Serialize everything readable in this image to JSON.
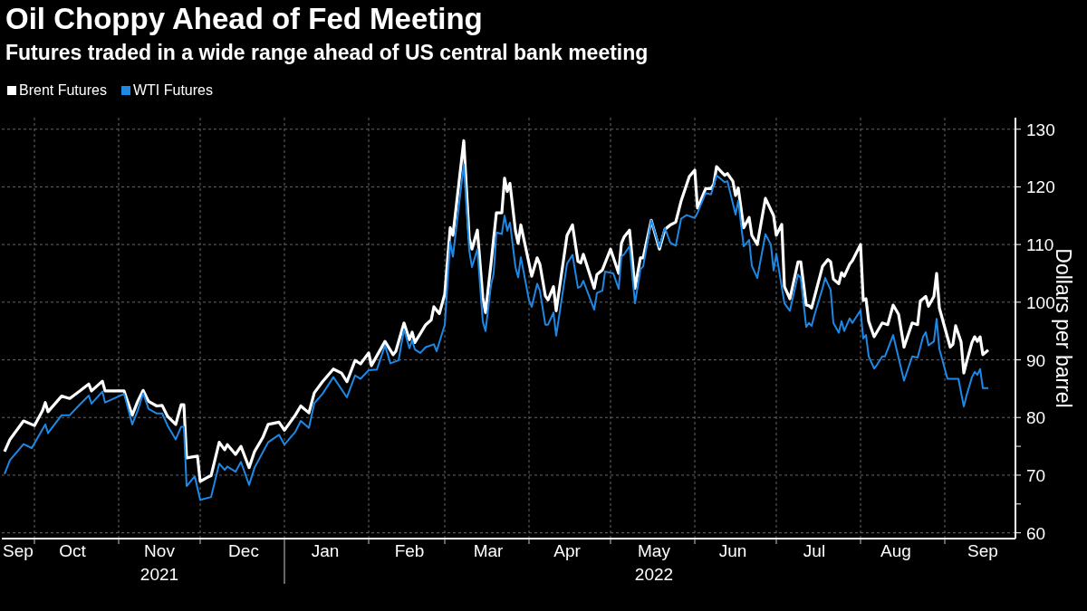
{
  "chart_data": {
    "type": "line",
    "title": "Oil Choppy Ahead of Fed Meeting",
    "subtitle": "Futures traded in a wide range ahead of US central bank meeting",
    "ylabel": "Dollars per barrel",
    "legend": "top left",
    "grid": true,
    "xlim": [
      "2021-09-19",
      "2022-09-27"
    ],
    "xticks": [
      {
        "value": "2021-09-25",
        "label": "Sep"
      },
      {
        "value": "2021-10-01",
        "label": null
      },
      {
        "value": "2021-10-15",
        "label": "Oct"
      },
      {
        "value": "2021-11-01",
        "label": null
      },
      {
        "value": "2021-11-16",
        "label": "Nov\n2021"
      },
      {
        "value": "2021-12-01",
        "label": null
      },
      {
        "value": "2021-12-17",
        "label": "Dec"
      },
      {
        "value": "2022-01-01",
        "label": null
      },
      {
        "value": "2022-01-16",
        "label": "Jan"
      },
      {
        "value": "2022-02-01",
        "label": null
      },
      {
        "value": "2022-02-16",
        "label": "Feb"
      },
      {
        "value": "2022-03-01",
        "label": null
      },
      {
        "value": "2022-03-17",
        "label": "Mar"
      },
      {
        "value": "2022-04-01",
        "label": null
      },
      {
        "value": "2022-04-15",
        "label": "Apr"
      },
      {
        "value": "2022-05-01",
        "label": null
      },
      {
        "value": "2022-05-17",
        "label": "May\n2022"
      },
      {
        "value": "2022-06-01",
        "label": null
      },
      {
        "value": "2022-06-15",
        "label": "Jun"
      },
      {
        "value": "2022-07-01",
        "label": null
      },
      {
        "value": "2022-07-15",
        "label": "Jul"
      },
      {
        "value": "2022-08-01",
        "label": null
      },
      {
        "value": "2022-08-14",
        "label": "Aug"
      },
      {
        "value": "2022-09-01",
        "label": null
      },
      {
        "value": "2022-09-15",
        "label": "Sep"
      }
    ],
    "ylim": [
      59,
      132
    ],
    "yticks": [
      60,
      {
        "value": 65,
        "label": null
      },
      70,
      {
        "value": 75,
        "label": null
      },
      80,
      90,
      100,
      110,
      120,
      130
    ],
    "series": [
      {
        "name": "Brent Futures",
        "color": "#ffffff",
        "x": [
          "2021-09-20",
          "2021-09-22",
          "2021-09-27",
          "2021-10-01",
          "2021-10-04",
          "2021-10-05",
          "2021-10-06",
          "2021-10-11",
          "2021-10-14",
          "2021-10-18",
          "2021-10-21",
          "2021-10-22",
          "2021-10-26",
          "2021-10-27",
          "2021-11-03",
          "2021-11-06",
          "2021-11-08",
          "2021-11-10",
          "2021-11-12",
          "2021-11-15",
          "2021-11-17",
          "2021-11-19",
          "2021-11-22",
          "2021-11-24",
          "2021-11-25",
          "2021-11-26",
          "2021-11-30",
          "2021-12-01",
          "2021-12-04",
          "2021-12-05",
          "2021-12-08",
          "2021-12-10",
          "2021-12-11",
          "2021-12-14",
          "2021-12-16",
          "2021-12-19",
          "2021-12-21",
          "2021-12-24",
          "2021-12-26",
          "2021-12-30",
          "2022-01-01",
          "2022-01-05",
          "2022-01-07",
          "2022-01-10",
          "2022-01-12",
          "2022-01-15",
          "2022-01-19",
          "2022-01-22",
          "2022-01-24",
          "2022-01-27",
          "2022-01-29",
          "2022-02-01",
          "2022-02-02",
          "2022-02-07",
          "2022-02-10",
          "2022-02-11",
          "2022-02-14",
          "2022-02-16",
          "2022-02-17",
          "2022-02-18",
          "2022-02-22",
          "2022-02-24",
          "2022-02-25",
          "2022-02-27",
          "2022-03-01",
          "2022-03-03",
          "2022-03-04",
          "2022-03-08",
          "2022-03-10",
          "2022-03-11",
          "2022-03-13",
          "2022-03-15",
          "2022-03-16",
          "2022-03-18",
          "2022-03-20",
          "2022-03-22",
          "2022-03-23",
          "2022-03-24",
          "2022-03-25",
          "2022-03-27",
          "2022-03-28",
          "2022-03-29",
          "2022-04-02",
          "2022-04-04",
          "2022-04-05",
          "2022-04-07",
          "2022-04-08",
          "2022-04-10",
          "2022-04-11",
          "2022-04-15",
          "2022-04-17",
          "2022-04-19",
          "2022-04-20",
          "2022-04-21",
          "2022-04-25",
          "2022-04-26",
          "2022-04-28",
          "2022-05-01",
          "2022-05-04",
          "2022-05-05",
          "2022-05-06",
          "2022-05-08",
          "2022-05-10",
          "2022-05-12",
          "2022-05-13",
          "2022-05-16",
          "2022-05-19",
          "2022-05-21",
          "2022-05-23",
          "2022-05-25",
          "2022-05-27",
          "2022-05-30",
          "2022-06-01",
          "2022-06-02",
          "2022-06-05",
          "2022-06-07",
          "2022-06-08",
          "2022-06-09",
          "2022-06-10",
          "2022-06-12",
          "2022-06-13",
          "2022-06-15",
          "2022-06-16",
          "2022-06-17",
          "2022-06-19",
          "2022-06-21",
          "2022-06-22",
          "2022-06-24",
          "2022-06-27",
          "2022-06-30",
          "2022-07-01",
          "2022-07-03",
          "2022-07-04",
          "2022-07-06",
          "2022-07-09",
          "2022-07-10",
          "2022-07-12",
          "2022-07-13",
          "2022-07-14",
          "2022-07-18",
          "2022-07-20",
          "2022-07-21",
          "2022-07-22",
          "2022-07-24",
          "2022-07-25",
          "2022-07-26",
          "2022-07-28",
          "2022-07-29",
          "2022-08-01",
          "2022-08-02",
          "2022-08-03",
          "2022-08-04",
          "2022-08-06",
          "2022-08-09",
          "2022-08-11",
          "2022-08-13",
          "2022-08-15",
          "2022-08-17",
          "2022-08-18",
          "2022-08-20",
          "2022-08-22",
          "2022-08-23",
          "2022-08-25",
          "2022-08-26",
          "2022-08-28",
          "2022-08-29",
          "2022-08-30",
          "2022-09-03",
          "2022-09-04",
          "2022-09-05",
          "2022-09-07",
          "2022-09-08",
          "2022-09-09",
          "2022-09-11",
          "2022-09-12",
          "2022-09-13",
          "2022-09-14",
          "2022-09-15",
          "2022-09-17"
        ],
        "values": [
          74.1,
          76.2,
          79.4,
          78.6,
          81.2,
          82.6,
          81.0,
          83.7,
          83.3,
          84.7,
          85.8,
          84.6,
          86.3,
          84.6,
          84.6,
          80.4,
          82.8,
          84.7,
          82.8,
          82.0,
          82.1,
          80.2,
          78.8,
          82.2,
          82.2,
          73.0,
          73.3,
          68.9,
          69.7,
          69.9,
          75.7,
          74.4,
          75.3,
          73.6,
          75.0,
          71.3,
          74.1,
          76.5,
          78.8,
          79.2,
          77.8,
          80.4,
          82.0,
          80.8,
          84.3,
          86.2,
          88.4,
          87.7,
          86.2,
          89.9,
          89.3,
          91.2,
          89.0,
          93.2,
          90.9,
          91.5,
          96.4,
          93.5,
          94.8,
          93.0,
          96.1,
          96.9,
          99.2,
          98.0,
          101.4,
          112.9,
          111.6,
          128.0,
          111.1,
          109.2,
          112.5,
          100.8,
          98.2,
          106.6,
          115.5,
          115.5,
          121.5,
          119.2,
          120.6,
          112.4,
          110.2,
          113.4,
          104.5,
          107.7,
          106.6,
          101.1,
          100.4,
          102.7,
          98.5,
          111.6,
          113.4,
          107.1,
          106.8,
          108.3,
          102.4,
          104.8,
          105.6,
          109.2,
          105.0,
          110.2,
          111.3,
          112.5,
          102.4,
          107.7,
          107.7,
          114.2,
          109.2,
          112.6,
          113.4,
          113.9,
          117.6,
          121.8,
          122.9,
          116.3,
          119.7,
          119.7,
          120.5,
          123.5,
          123.0,
          122.0,
          122.3,
          121.0,
          118.5,
          119.8,
          112.9,
          114.7,
          111.6,
          110.0,
          118.0,
          115.0,
          111.6,
          113.5,
          102.7,
          100.6,
          107.0,
          107.0,
          99.5,
          99.4,
          99.0,
          106.2,
          107.4,
          107.0,
          104.0,
          103.2,
          105.1,
          104.5,
          106.6,
          107.2,
          110.0,
          100.3,
          100.6,
          96.7,
          94.0,
          96.4,
          96.1,
          99.5,
          97.9,
          92.2,
          93.6,
          96.4,
          96.1,
          100.2,
          101.0,
          99.3,
          101.0,
          105.0,
          99.0,
          92.2,
          92.7,
          95.9,
          93.1,
          87.7,
          89.6,
          93.0,
          94.0,
          93.2,
          94.0,
          90.9,
          91.7
        ]
      },
      {
        "name": "WTI Futures",
        "color": "#1e88e5",
        "x": [
          "2021-09-20",
          "2021-09-22",
          "2021-09-27",
          "2021-09-30",
          "2021-10-05",
          "2021-10-06",
          "2021-10-11",
          "2021-10-14",
          "2021-10-18",
          "2021-10-21",
          "2021-10-22",
          "2021-10-26",
          "2021-10-27",
          "2021-11-03",
          "2021-11-06",
          "2021-11-08",
          "2021-11-10",
          "2021-11-12",
          "2021-11-15",
          "2021-11-17",
          "2021-11-19",
          "2021-11-22",
          "2021-11-24",
          "2021-11-25",
          "2021-11-26",
          "2021-11-29",
          "2021-12-01",
          "2021-12-05",
          "2021-12-08",
          "2021-12-10",
          "2021-12-11",
          "2021-12-14",
          "2021-12-16",
          "2021-12-19",
          "2021-12-21",
          "2021-12-26",
          "2021-12-30",
          "2022-01-01",
          "2022-01-05",
          "2022-01-07",
          "2022-01-10",
          "2022-01-12",
          "2022-01-15",
          "2022-01-19",
          "2022-01-24",
          "2022-01-27",
          "2022-01-29",
          "2022-02-01",
          "2022-02-04",
          "2022-02-07",
          "2022-02-09",
          "2022-02-12",
          "2022-02-14",
          "2022-02-16",
          "2022-02-17",
          "2022-02-18",
          "2022-02-20",
          "2022-02-22",
          "2022-02-25",
          "2022-02-26",
          "2022-03-01",
          "2022-03-03",
          "2022-03-04",
          "2022-03-08",
          "2022-03-10",
          "2022-03-11",
          "2022-03-13",
          "2022-03-15",
          "2022-03-16",
          "2022-03-18",
          "2022-03-19",
          "2022-03-20",
          "2022-03-22",
          "2022-03-23",
          "2022-03-24",
          "2022-03-25",
          "2022-03-27",
          "2022-03-28",
          "2022-03-29",
          "2022-04-01",
          "2022-04-02",
          "2022-04-04",
          "2022-04-05",
          "2022-04-07",
          "2022-04-08",
          "2022-04-10",
          "2022-04-11",
          "2022-04-15",
          "2022-04-17",
          "2022-04-19",
          "2022-04-20",
          "2022-04-21",
          "2022-04-25",
          "2022-04-26",
          "2022-04-28",
          "2022-04-29",
          "2022-05-02",
          "2022-05-04",
          "2022-05-05",
          "2022-05-06",
          "2022-05-08",
          "2022-05-10",
          "2022-05-12",
          "2022-05-13",
          "2022-05-16",
          "2022-05-19",
          "2022-05-21",
          "2022-05-23",
          "2022-05-25",
          "2022-05-27",
          "2022-05-29",
          "2022-06-01",
          "2022-06-02",
          "2022-06-05",
          "2022-06-07",
          "2022-06-09",
          "2022-06-12",
          "2022-06-13",
          "2022-06-16",
          "2022-06-17",
          "2022-06-19",
          "2022-06-21",
          "2022-06-22",
          "2022-06-24",
          "2022-06-27",
          "2022-06-29",
          "2022-06-30",
          "2022-07-01",
          "2022-07-04",
          "2022-07-06",
          "2022-07-09",
          "2022-07-10",
          "2022-07-12",
          "2022-07-13",
          "2022-07-14",
          "2022-07-15",
          "2022-07-18",
          "2022-07-19",
          "2022-07-21",
          "2022-07-22",
          "2022-07-24",
          "2022-07-25",
          "2022-07-26",
          "2022-07-28",
          "2022-07-29",
          "2022-08-01",
          "2022-08-02",
          "2022-08-03",
          "2022-08-04",
          "2022-08-06",
          "2022-08-07",
          "2022-08-09",
          "2022-08-10",
          "2022-08-13",
          "2022-08-17",
          "2022-08-18",
          "2022-08-20",
          "2022-08-22",
          "2022-08-24",
          "2022-08-25",
          "2022-08-26",
          "2022-08-28",
          "2022-08-29",
          "2022-08-30",
          "2022-09-02",
          "2022-09-06",
          "2022-09-08",
          "2022-09-09",
          "2022-09-11",
          "2022-09-12",
          "2022-09-13",
          "2022-09-14",
          "2022-09-15",
          "2022-09-17"
        ],
        "values": [
          70.2,
          72.6,
          75.4,
          74.7,
          78.8,
          77.3,
          80.4,
          80.4,
          82.4,
          83.8,
          82.4,
          84.5,
          82.6,
          84.1,
          78.8,
          81.2,
          84.2,
          81.5,
          80.7,
          80.7,
          78.6,
          76.2,
          78.4,
          78.4,
          68.1,
          69.8,
          65.7,
          66.2,
          72.0,
          70.9,
          71.5,
          70.6,
          72.3,
          68.3,
          71.3,
          75.7,
          77.0,
          75.3,
          77.5,
          79.4,
          78.2,
          82.5,
          84.1,
          87.0,
          83.5,
          87.3,
          86.7,
          88.2,
          88.3,
          92.5,
          89.4,
          89.9,
          95.3,
          92.0,
          93.4,
          91.8,
          91.2,
          92.2,
          92.7,
          91.5,
          96.1,
          110.5,
          107.9,
          123.9,
          109.0,
          106.1,
          109.2,
          96.6,
          95.0,
          102.9,
          105.0,
          112.1,
          111.8,
          115.0,
          112.4,
          113.8,
          106.1,
          104.3,
          107.8,
          100.3,
          99.2,
          103.2,
          102.0,
          96.1,
          96.1,
          98.2,
          94.2,
          106.7,
          108.2,
          102.5,
          102.7,
          103.7,
          98.7,
          101.6,
          102.0,
          105.3,
          105.0,
          102.3,
          107.9,
          108.3,
          109.7,
          99.8,
          105.7,
          106.2,
          114.2,
          109.5,
          112.9,
          110.3,
          109.8,
          114.5,
          115.1,
          114.6,
          115.5,
          118.9,
          118.7,
          122.0,
          120.8,
          121.0,
          115.2,
          117.6,
          109.7,
          110.8,
          106.3,
          104.2,
          111.8,
          110.0,
          105.5,
          108.4,
          99.8,
          98.5,
          104.8,
          104.2,
          95.7,
          96.4,
          95.9,
          97.7,
          102.4,
          104.2,
          102.1,
          96.4,
          94.7,
          96.7,
          95.0,
          97.2,
          96.4,
          98.6,
          93.7,
          94.3,
          90.6,
          88.5,
          89.1,
          90.6,
          90.6,
          94.3,
          86.4,
          87.8,
          90.6,
          90.4,
          94.0,
          94.8,
          92.5,
          93.2,
          97.1,
          91.9,
          86.7,
          86.7,
          81.9,
          83.8,
          87.0,
          87.9,
          87.4,
          88.4,
          85.1,
          85.1
        ]
      }
    ]
  }
}
